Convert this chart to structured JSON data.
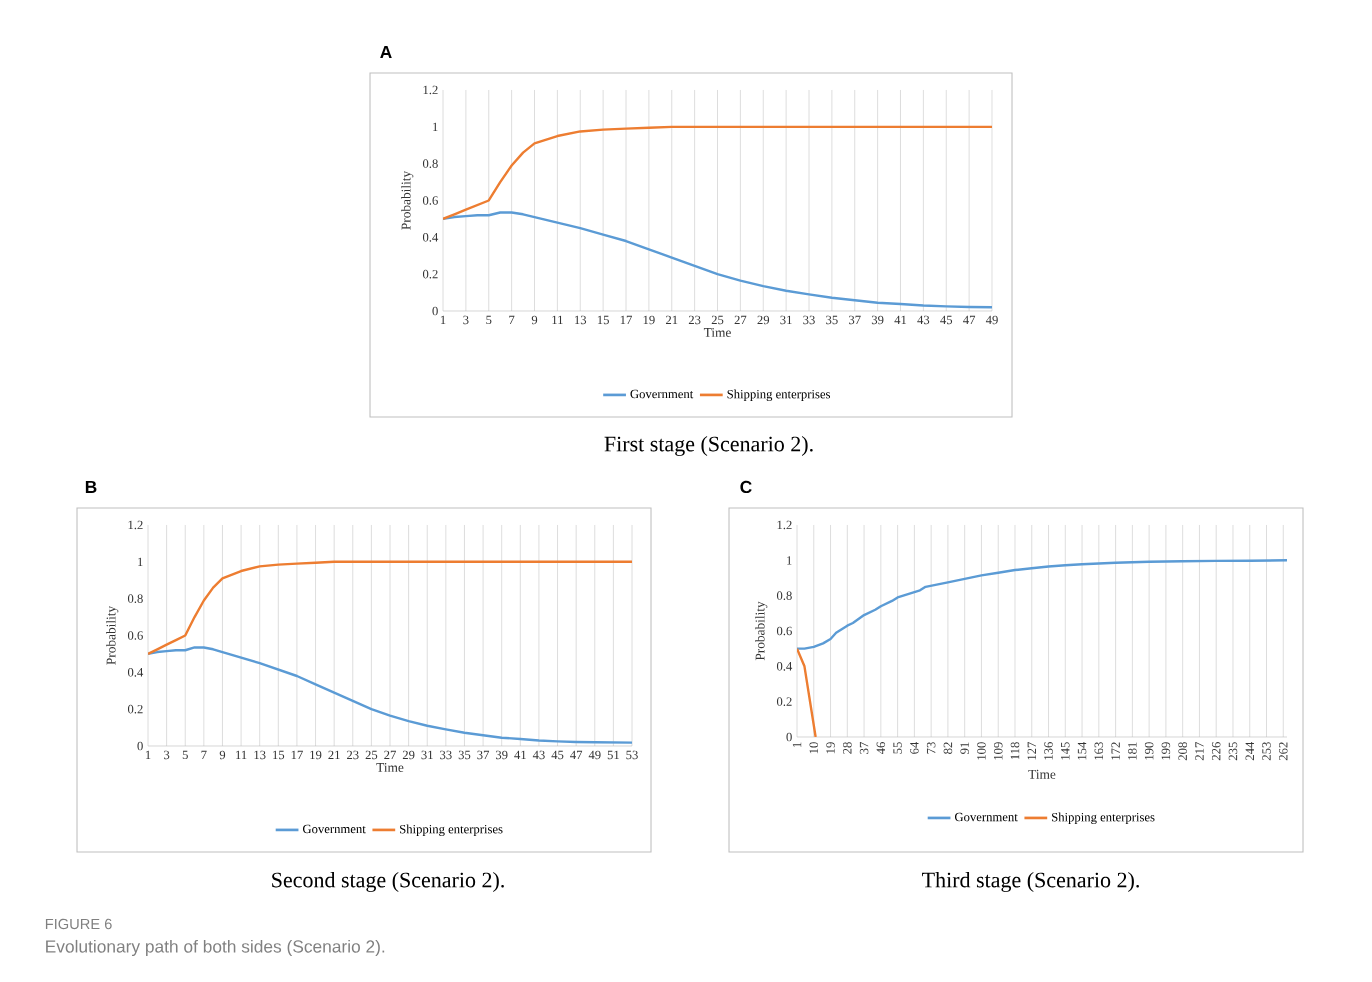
{
  "chart_data": [
    {
      "type": "line",
      "title": "A",
      "annotations": [
        "First stage (Scenario 2)."
      ],
      "xlabel": "Time",
      "ylabel": "Probability",
      "xlim": [
        1,
        49
      ],
      "xticks": [
        1,
        3,
        5,
        7,
        9,
        11,
        13,
        15,
        17,
        19,
        21,
        23,
        25,
        27,
        29,
        31,
        33,
        35,
        37,
        39,
        41,
        43,
        45,
        47,
        49
      ],
      "ylim": [
        0,
        1.2
      ],
      "yticks": [
        0,
        0.2,
        0.4,
        0.6,
        0.8,
        1,
        1.2
      ],
      "grid": "x",
      "legend": "bottom",
      "series": [
        {
          "name": "Government",
          "color": "#5b9bd5",
          "x": [
            1,
            2,
            3,
            4,
            5,
            6,
            7,
            8,
            9,
            11,
            13,
            15,
            17,
            19,
            21,
            23,
            25,
            27,
            29,
            31,
            33,
            35,
            37,
            39,
            41,
            43,
            45,
            47,
            49
          ],
          "values": [
            0.5,
            0.51,
            0.515,
            0.52,
            0.52,
            0.535,
            0.535,
            0.525,
            0.51,
            0.48,
            0.45,
            0.415,
            0.38,
            0.335,
            0.29,
            0.245,
            0.2,
            0.165,
            0.135,
            0.11,
            0.09,
            0.072,
            0.058,
            0.045,
            0.038,
            0.03,
            0.025,
            0.022,
            0.02
          ]
        },
        {
          "name": "Shipping enterprises",
          "color": "#ed7d31",
          "x": [
            1,
            2,
            3,
            4,
            5,
            6,
            7,
            8,
            9,
            11,
            13,
            15,
            17,
            19,
            21,
            25,
            49
          ],
          "values": [
            0.5,
            0.525,
            0.55,
            0.575,
            0.6,
            0.7,
            0.79,
            0.86,
            0.91,
            0.95,
            0.975,
            0.985,
            0.99,
            0.995,
            1,
            1,
            1
          ]
        }
      ]
    },
    {
      "type": "line",
      "title": "B",
      "annotations": [
        "Second stage (Scenario 2)."
      ],
      "xlabel": "Time",
      "ylabel": "Probability",
      "xlim": [
        1,
        53
      ],
      "xticks": [
        1,
        3,
        5,
        7,
        9,
        11,
        13,
        15,
        17,
        19,
        21,
        23,
        25,
        27,
        29,
        31,
        33,
        35,
        37,
        39,
        41,
        43,
        45,
        47,
        49,
        51,
        53
      ],
      "ylim": [
        0,
        1.2
      ],
      "yticks": [
        0,
        0.2,
        0.4,
        0.6,
        0.8,
        1,
        1.2
      ],
      "grid": "x",
      "legend": "bottom",
      "series": [
        {
          "name": "Government",
          "color": "#5b9bd5",
          "x": [
            1,
            2,
            3,
            4,
            5,
            6,
            7,
            8,
            9,
            11,
            13,
            15,
            17,
            19,
            21,
            23,
            25,
            27,
            29,
            31,
            33,
            35,
            37,
            39,
            41,
            43,
            45,
            47,
            49,
            51,
            53
          ],
          "values": [
            0.5,
            0.51,
            0.515,
            0.52,
            0.52,
            0.535,
            0.535,
            0.525,
            0.51,
            0.48,
            0.45,
            0.415,
            0.38,
            0.335,
            0.29,
            0.245,
            0.2,
            0.165,
            0.135,
            0.11,
            0.09,
            0.072,
            0.058,
            0.045,
            0.038,
            0.03,
            0.025,
            0.022,
            0.02,
            0.019,
            0.018
          ]
        },
        {
          "name": "Shipping enterprises",
          "color": "#ed7d31",
          "x": [
            1,
            2,
            3,
            4,
            5,
            6,
            7,
            8,
            9,
            11,
            13,
            15,
            17,
            19,
            21,
            25,
            53
          ],
          "values": [
            0.5,
            0.525,
            0.55,
            0.575,
            0.6,
            0.7,
            0.79,
            0.86,
            0.91,
            0.95,
            0.975,
            0.985,
            0.99,
            0.995,
            1,
            1,
            1
          ]
        }
      ]
    },
    {
      "type": "line",
      "title": "C",
      "annotations": [
        "Third stage (Scenario 2).",
        "FIGURE 6",
        "Evolutionary path of both sides (Scenario 2)."
      ],
      "xlabel": "Time",
      "ylabel": "Probability",
      "xlim": [
        1,
        264
      ],
      "xticks": [
        1,
        10,
        19,
        28,
        37,
        46,
        55,
        64,
        73,
        82,
        91,
        100,
        109,
        118,
        127,
        136,
        145,
        154,
        163,
        172,
        181,
        190,
        199,
        208,
        217,
        226,
        235,
        244,
        253,
        262
      ],
      "ylim": [
        0,
        1.2
      ],
      "yticks": [
        0,
        0.2,
        0.4,
        0.6,
        0.8,
        1,
        1.2
      ],
      "grid": "x",
      "legend": "bottom",
      "series": [
        {
          "name": "Government",
          "color": "#5b9bd5",
          "x": [
            1,
            5,
            10,
            15,
            19,
            22,
            28,
            31,
            37,
            43,
            46,
            52,
            55,
            61,
            67,
            70,
            82,
            91,
            100,
            109,
            118,
            127,
            136,
            145,
            154,
            172,
            190,
            208,
            226,
            244,
            264
          ],
          "values": [
            0.5,
            0.5,
            0.51,
            0.53,
            0.555,
            0.59,
            0.63,
            0.645,
            0.69,
            0.72,
            0.74,
            0.77,
            0.79,
            0.81,
            0.83,
            0.85,
            0.875,
            0.895,
            0.915,
            0.93,
            0.945,
            0.955,
            0.965,
            0.972,
            0.978,
            0.986,
            0.992,
            0.995,
            0.997,
            0.998,
            1
          ]
        },
        {
          "name": "Shipping enterprises",
          "color": "#ed7d31",
          "x": [
            1,
            5,
            11
          ],
          "values": [
            0.5,
            0.4,
            0
          ]
        }
      ]
    }
  ]
}
